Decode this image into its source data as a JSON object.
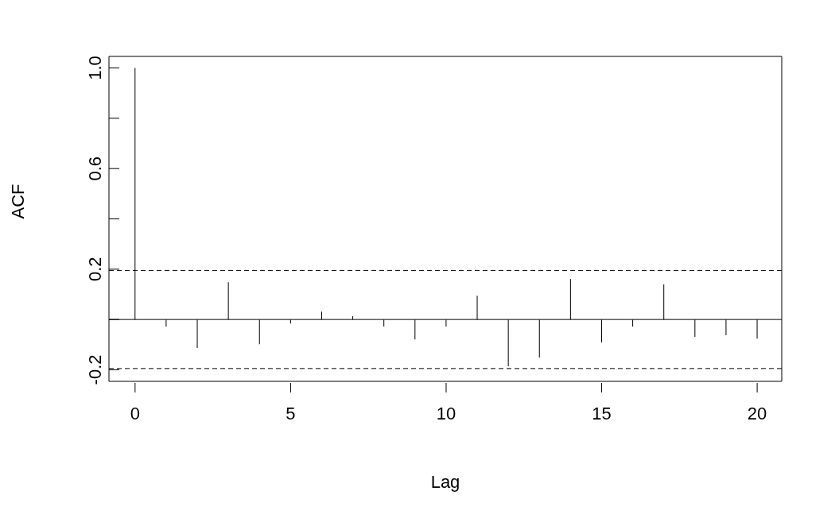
{
  "chart_data": {
    "type": "bar",
    "xlabel": "Lag",
    "ylabel": "ACF",
    "color": "#000000",
    "x": [
      0,
      1,
      2,
      3,
      4,
      5,
      6,
      7,
      8,
      9,
      10,
      11,
      12,
      13,
      14,
      15,
      16,
      17,
      18,
      19,
      20
    ],
    "values": [
      1.0,
      -0.028,
      -0.113,
      0.148,
      -0.098,
      -0.016,
      0.031,
      0.013,
      -0.028,
      -0.079,
      -0.028,
      0.094,
      -0.186,
      -0.151,
      0.161,
      -0.091,
      -0.028,
      0.139,
      -0.069,
      -0.063,
      -0.076
    ],
    "xlim": [
      -0.84,
      20.79
    ],
    "ylim": [
      -0.246,
      1.046
    ],
    "xticks": [
      0,
      5,
      10,
      15,
      20
    ],
    "yticks": [
      -0.2,
      {
        "value": 0,
        "label": null
      },
      0.2,
      {
        "value": 0.4,
        "label": null
      },
      0.6,
      {
        "value": 0.8,
        "label": null
      },
      {
        "value": 1,
        "label": "1.0"
      }
    ],
    "ref_lines": [
      {
        "axis": "y",
        "value": 0,
        "color": "#000000",
        "line_style": "solid"
      },
      {
        "axis": "y",
        "value": 0.195,
        "color": "#000000",
        "line_style": "dashed"
      },
      {
        "axis": "y",
        "value": -0.195,
        "color": "#000000",
        "line_style": "dashed"
      }
    ],
    "grid": false,
    "legend": false
  }
}
